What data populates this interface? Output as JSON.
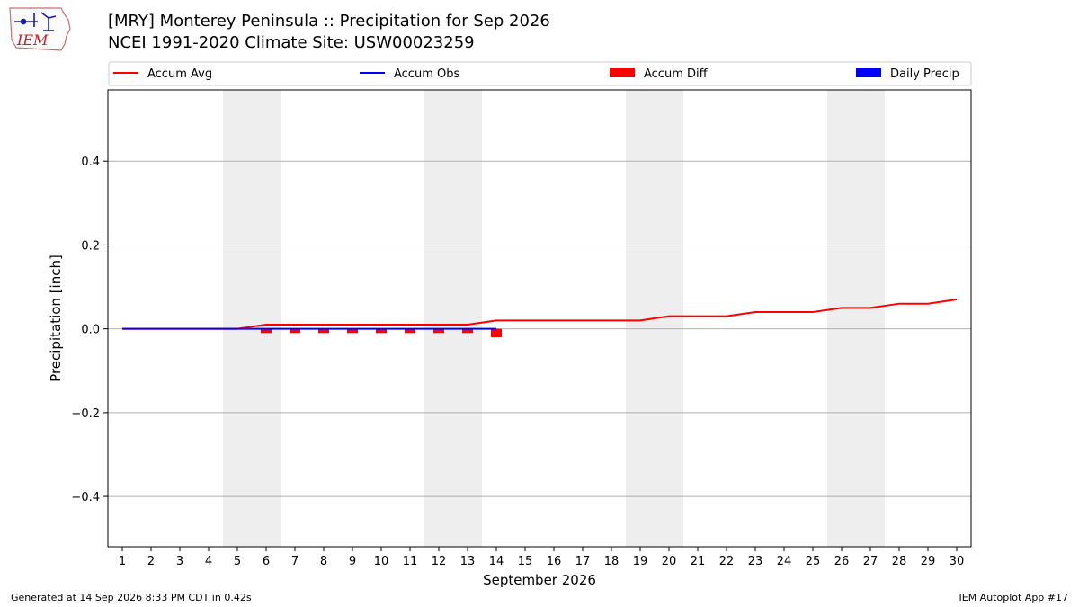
{
  "header": {
    "logo_text": "IEM",
    "title_line1": "[MRY] Monterey Peninsula :: Precipitation for Sep 2026",
    "title_line2": "NCEI 1991-2020 Climate Site: USW00023259"
  },
  "footer": {
    "generated": "Generated at 14 Sep 2026 8:33 PM CDT in 0.42s",
    "app": "IEM Autoplot App #17"
  },
  "colors": {
    "avg": "#ff0000",
    "obs": "#0000ff",
    "diff": "#ff0000",
    "daily": "#0000ff",
    "weekend_shade": "#eeeeee",
    "grid": "#b0b0b0"
  },
  "chart_data": {
    "type": "line",
    "xlabel": "September 2026",
    "ylabel": "Precipitation [inch]",
    "ylim": [
      -0.52,
      0.57
    ],
    "yticks": [
      -0.4,
      -0.2,
      0.0,
      0.2,
      0.4
    ],
    "ytick_labels": [
      "−0.4",
      "−0.2",
      "0.0",
      "0.2",
      "0.4"
    ],
    "x": [
      1,
      2,
      3,
      4,
      5,
      6,
      7,
      8,
      9,
      10,
      11,
      12,
      13,
      14,
      15,
      16,
      17,
      18,
      19,
      20,
      21,
      22,
      23,
      24,
      25,
      26,
      27,
      28,
      29,
      30
    ],
    "shaded_weekends": [
      [
        5,
        6
      ],
      [
        12,
        13
      ],
      [
        19,
        20
      ],
      [
        26,
        27
      ]
    ],
    "grid": "horizontal",
    "legend": {
      "placement": "top, above plot",
      "entries": [
        {
          "label": "Accum Avg",
          "kind": "line",
          "color": "#ff0000"
        },
        {
          "label": "Accum Obs",
          "kind": "line",
          "color": "#0000ff"
        },
        {
          "label": "Accum Diff",
          "kind": "bar",
          "color": "#ff0000"
        },
        {
          "label": "Daily Precip",
          "kind": "bar",
          "color": "#0000ff"
        }
      ]
    },
    "series": [
      {
        "name": "Accum Avg",
        "type": "line",
        "x": [
          1,
          2,
          3,
          4,
          5,
          6,
          7,
          8,
          9,
          10,
          11,
          12,
          13,
          14,
          15,
          16,
          17,
          18,
          19,
          20,
          21,
          22,
          23,
          24,
          25,
          26,
          27,
          28,
          29,
          30
        ],
        "values": [
          0,
          0,
          0,
          0,
          0,
          0.01,
          0.01,
          0.01,
          0.01,
          0.01,
          0.01,
          0.01,
          0.01,
          0.02,
          0.02,
          0.02,
          0.02,
          0.02,
          0.02,
          0.03,
          0.03,
          0.03,
          0.04,
          0.04,
          0.04,
          0.05,
          0.05,
          0.06,
          0.06,
          0.07
        ]
      },
      {
        "name": "Accum Obs",
        "type": "line",
        "x": [
          1,
          2,
          3,
          4,
          5,
          6,
          7,
          8,
          9,
          10,
          11,
          12,
          13,
          14
        ],
        "values": [
          0,
          0,
          0,
          0,
          0,
          0,
          0,
          0,
          0,
          0,
          0,
          0,
          0,
          0
        ]
      },
      {
        "name": "Accum Diff",
        "type": "bar",
        "x": [
          6,
          7,
          8,
          9,
          10,
          11,
          12,
          13,
          14
        ],
        "values": [
          -0.01,
          -0.01,
          -0.01,
          -0.01,
          -0.01,
          -0.01,
          -0.01,
          -0.01,
          -0.02
        ]
      },
      {
        "name": "Daily Precip",
        "type": "bar",
        "x": [
          1,
          2,
          3,
          4,
          5,
          6,
          7,
          8,
          9,
          10,
          11,
          12,
          13,
          14
        ],
        "values": [
          0,
          0,
          0,
          0,
          0,
          0,
          0,
          0,
          0,
          0,
          0,
          0,
          0,
          0
        ]
      }
    ]
  }
}
